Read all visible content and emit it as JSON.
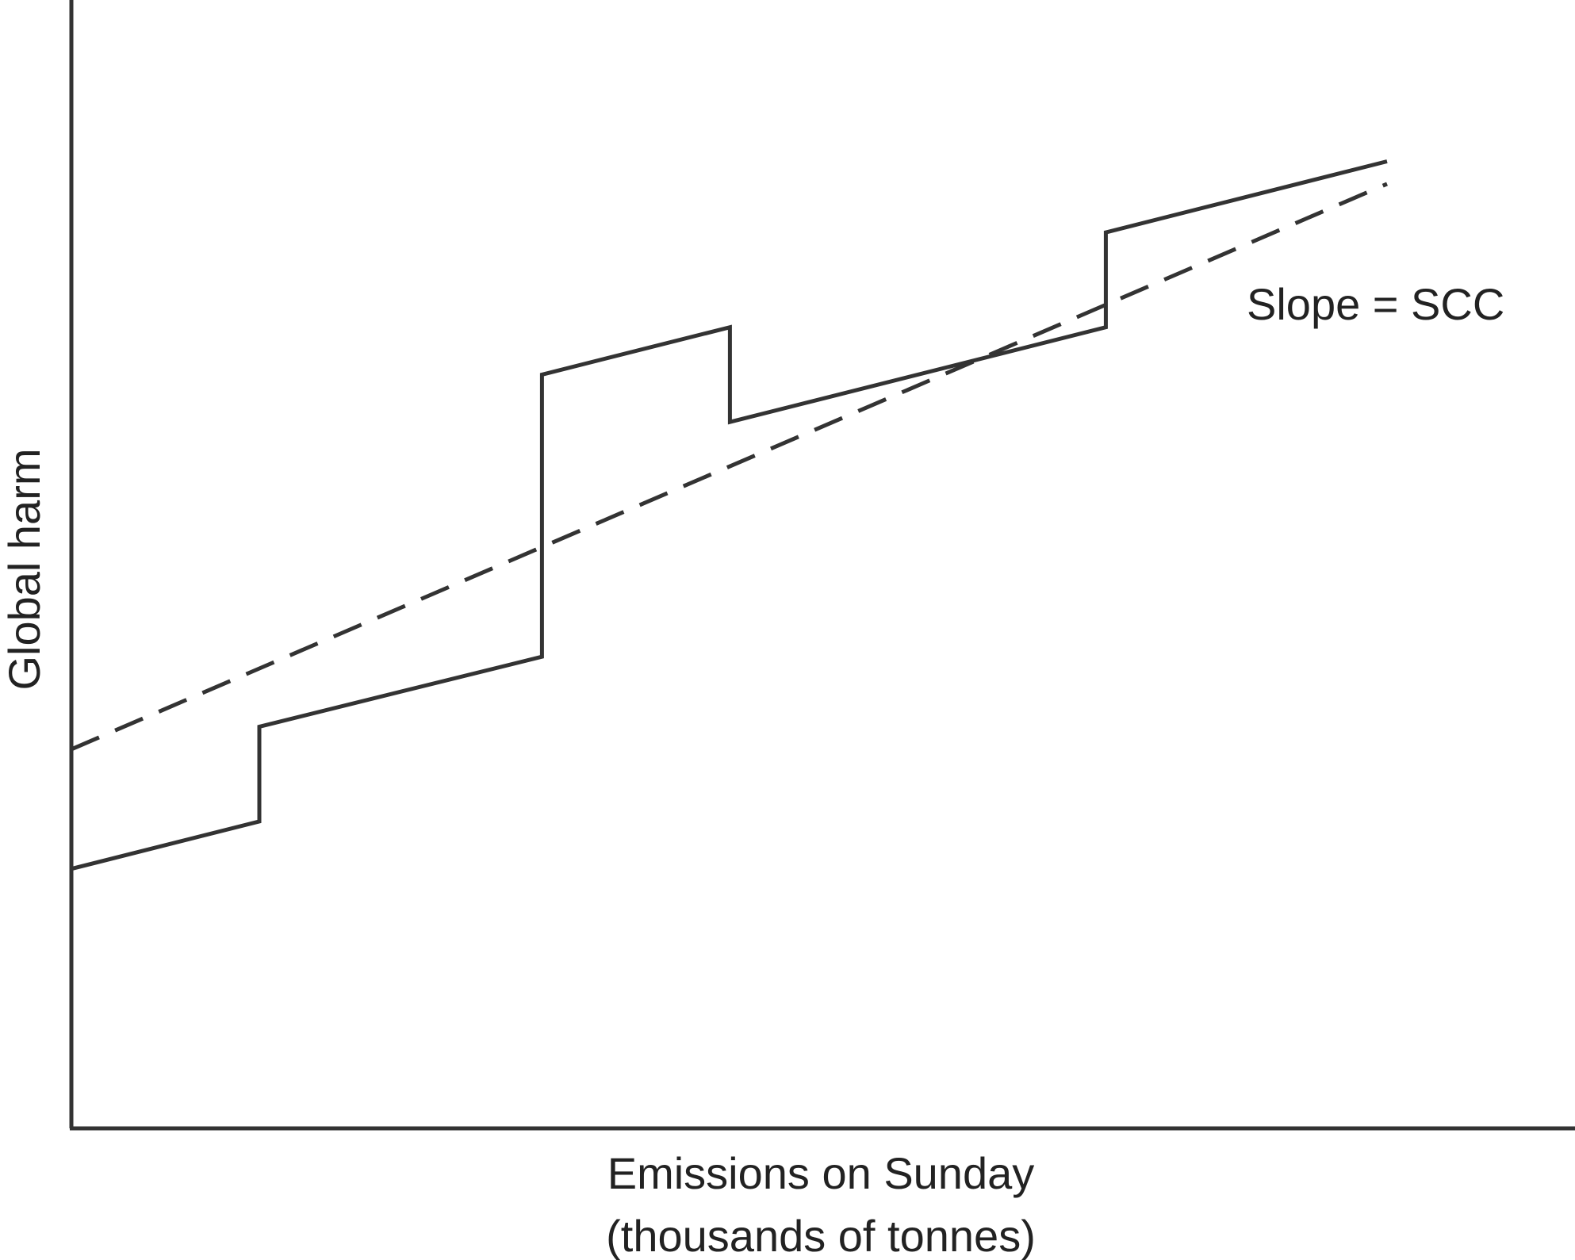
{
  "chart_data": {
    "type": "line",
    "xlabel_lines": [
      "Emissions on Sunday",
      "(thousands of tonnes)"
    ],
    "ylabel": "Global harm",
    "annotation": "Slope = SCC",
    "grid": false,
    "ticks": false,
    "xlim": [
      0,
      100
    ],
    "ylim": [
      0,
      100
    ],
    "series": [
      {
        "style": "solid",
        "points": [
          [
            0,
            23
          ],
          [
            12.5,
            27.2
          ],
          [
            12.5,
            35.6
          ],
          [
            31.3,
            41.8
          ],
          [
            31.3,
            66.8
          ],
          [
            43.8,
            71
          ],
          [
            43.8,
            62.6
          ],
          [
            68.8,
            71
          ],
          [
            68.8,
            79.4
          ],
          [
            87.5,
            85.7
          ]
        ]
      },
      {
        "style": "dashed",
        "points": [
          [
            0,
            33.6
          ],
          [
            87.5,
            83.7
          ]
        ]
      }
    ]
  }
}
